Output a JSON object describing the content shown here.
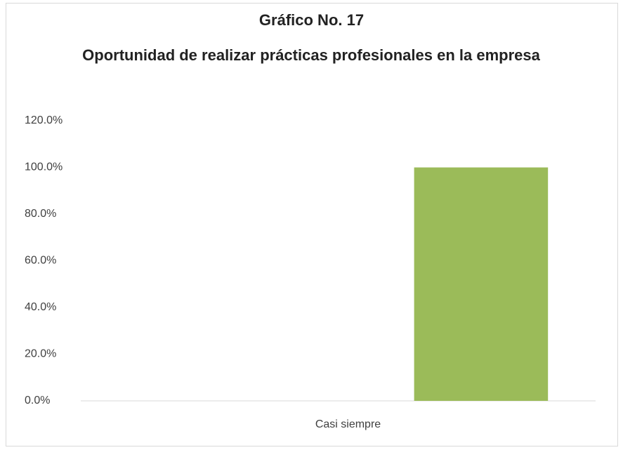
{
  "chart_data": {
    "type": "bar",
    "title": "Gráfico No. 17",
    "subtitle": "Oportunidad de realizar prácticas profesionales en la empresa",
    "categories": [
      "Casi siempre"
    ],
    "series": [
      {
        "values": [
          null
        ]
      },
      {
        "color": "#9bbb59",
        "values": [
          100
        ]
      }
    ],
    "ylim": [
      0,
      120
    ],
    "yticks": [
      {
        "value": 0,
        "label": "0.0%"
      },
      {
        "value": 20,
        "label": "20.0%"
      },
      {
        "value": 40,
        "label": "40.0%"
      },
      {
        "value": 60,
        "label": "60.0%"
      },
      {
        "value": 80,
        "label": "80.0%"
      },
      {
        "value": 100,
        "label": "100.0%"
      },
      {
        "value": 120,
        "label": "120.0%"
      }
    ],
    "grid": false
  }
}
